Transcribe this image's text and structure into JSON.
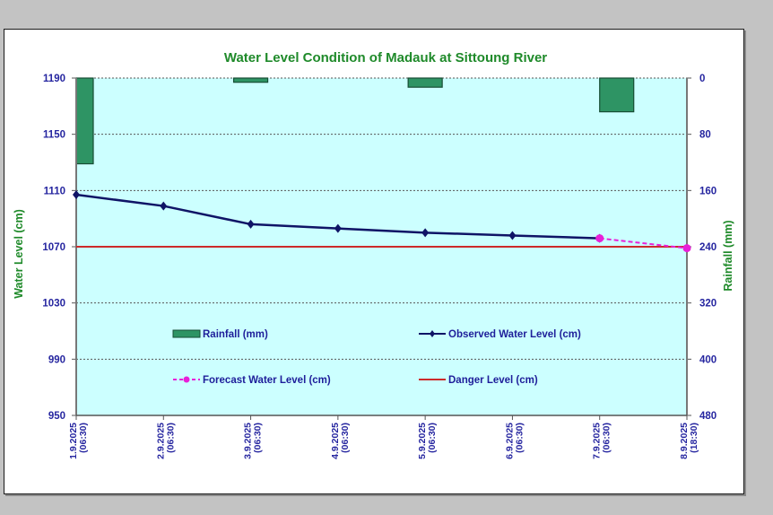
{
  "chart_data": {
    "type": "line",
    "title": "Water Level Condition of Madauk at Sittoung River",
    "xlabel": "",
    "ylabel": "Water Level (cm)",
    "y2label": "Rainfall (mm)",
    "categories": [
      "1.9.2025 (06:30)",
      "2.9.2025 (06:30)",
      "3.9.2025 (06:30)",
      "4.9.2025 (06:30)",
      "5.9.2025 (06:30)",
      "6.9.2025 (06:30)",
      "7.9.2025 (06:30)",
      "8.9.2025 (18:30)"
    ],
    "x_tick_labels": [
      {
        "date": "1.9.2025",
        "time": "(06:30)"
      },
      {
        "date": "2.9.2025",
        "time": "(06:30)"
      },
      {
        "date": "3.9.2025",
        "time": "(06:30)"
      },
      {
        "date": "4.9.2025",
        "time": "(06:30)"
      },
      {
        "date": "5.9.2025",
        "time": "(06:30)"
      },
      {
        "date": "6.9.2025",
        "time": "(06:30)"
      },
      {
        "date": "7.9.2025",
        "time": "(06:30)"
      },
      {
        "date": "8.9.2025",
        "time": "(18:30)"
      }
    ],
    "ylim": [
      950,
      1190
    ],
    "y_ticks": [
      1190,
      1150,
      1110,
      1070,
      1030,
      990,
      950
    ],
    "y2lim": [
      0,
      480
    ],
    "y2_inverted": true,
    "y2_ticks": [
      0,
      80,
      160,
      240,
      320,
      400,
      480
    ],
    "grid": true,
    "legend_position": "center",
    "series": [
      {
        "name": "Rainfall (mm)",
        "type": "bar",
        "axis": "right",
        "color": "#2e9464",
        "values": [
          122,
          0,
          6,
          0,
          13,
          0,
          0,
          48
        ]
      },
      {
        "name": "Observed Water Level (cm)",
        "type": "line",
        "axis": "left",
        "color": "#0f1466",
        "marker": "diamond",
        "values": [
          1107,
          1099,
          1086,
          1083,
          1080,
          1078,
          1076,
          null
        ]
      },
      {
        "name": "Forecast Water Level (cm)",
        "type": "line",
        "axis": "left",
        "color": "#e820d8",
        "dashed": true,
        "marker": "circle",
        "values": [
          null,
          null,
          null,
          null,
          null,
          null,
          1076,
          1069
        ]
      },
      {
        "name": "Danger Level (cm)",
        "type": "line",
        "axis": "left",
        "color": "#cc2a2a",
        "values": [
          1070,
          1070,
          1070,
          1070,
          1070,
          1070,
          1070,
          1070
        ]
      }
    ],
    "plot_background": "#ccffff"
  }
}
